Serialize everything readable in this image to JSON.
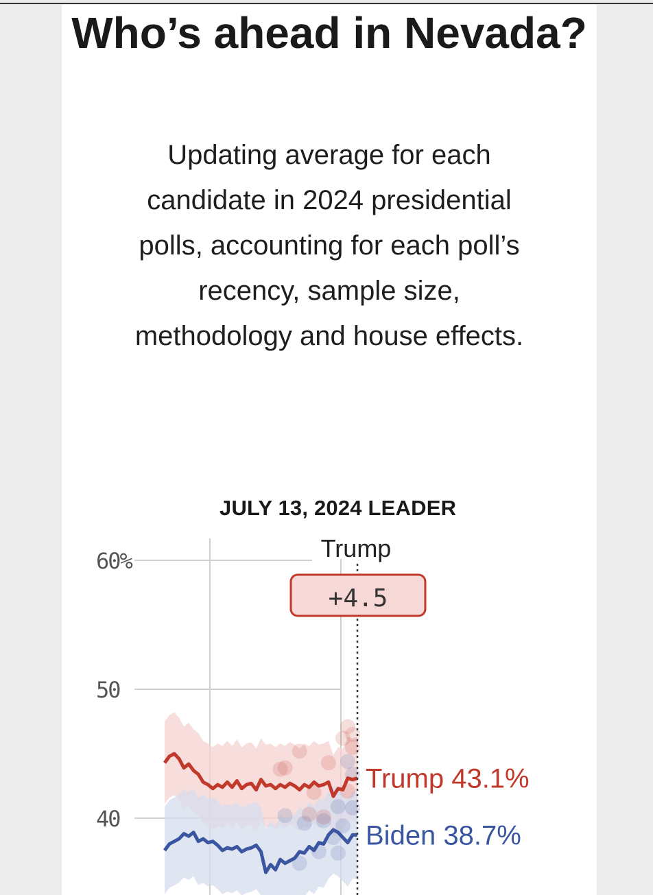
{
  "headline": "Who’s ahead in Nevada?",
  "dek": "Updating average for each candidate in 2024 presidential polls, accounting for each poll’s recency, sample size, methodology and house effects.",
  "leader_label": "JULY 13, 2024 LEADER",
  "leader_name": "Trump",
  "leader_margin": "+4.5",
  "colors": {
    "trump": "#c0392b",
    "biden": "#3b56a0",
    "trump_light": "#f4d3d0",
    "biden_light": "#d6dcee",
    "badge_fill": "#f6d8d6",
    "axis_text": "#555555",
    "grid": "#cfcfcf"
  },
  "chart_data": {
    "type": "line",
    "y_ticks": [
      "60%",
      "50",
      "40"
    ],
    "y_tick_values": [
      60,
      50,
      40
    ],
    "ylim": [
      34,
      62
    ],
    "x_range_weeks": [
      0,
      40
    ],
    "grid": true,
    "series": [
      {
        "name": "Trump",
        "final_label": "Trump 43.1%",
        "final_value": 43.1,
        "values": [
          44.3,
          44.8,
          45.0,
          44.6,
          43.9,
          44.2,
          43.7,
          43.4,
          42.8,
          42.6,
          42.3,
          42.6,
          42.4,
          42.8,
          42.4,
          42.9,
          42.3,
          42.6,
          42.7,
          42.2,
          43.0,
          42.5,
          42.6,
          42.3,
          42.6,
          42.4,
          42.7,
          42.5,
          42.2,
          42.6,
          42.4,
          42.8,
          42.5,
          42.6,
          42.8,
          41.7,
          42.3,
          42.2,
          43.1,
          43.0,
          43.1
        ]
      },
      {
        "name": "Biden",
        "final_label": "Biden 38.7%",
        "final_value": 38.7,
        "values": [
          37.5,
          38.0,
          38.2,
          38.4,
          38.8,
          38.6,
          38.9,
          38.2,
          38.4,
          38.1,
          38.2,
          37.9,
          37.5,
          37.7,
          37.6,
          37.8,
          37.4,
          37.6,
          37.7,
          37.9,
          37.4,
          35.8,
          36.4,
          36.0,
          36.8,
          36.5,
          36.7,
          36.9,
          37.4,
          37.3,
          37.8,
          37.5,
          38.1,
          38.0,
          38.7,
          39.1,
          38.9,
          38.5,
          38.1,
          38.7,
          38.7
        ]
      }
    ],
    "polls": {
      "trump": [
        [
          24,
          43.8
        ],
        [
          25,
          43.9
        ],
        [
          28,
          45.2
        ],
        [
          31,
          42.0
        ],
        [
          34,
          44.3
        ],
        [
          37,
          46.2
        ],
        [
          38,
          47.1
        ],
        [
          39,
          46.5
        ],
        [
          39,
          45.5
        ],
        [
          38,
          42.1
        ],
        [
          30,
          40.3
        ],
        [
          33,
          40.1
        ]
      ],
      "biden": [
        [
          25,
          40.2
        ],
        [
          29,
          39.6
        ],
        [
          33,
          39.8
        ],
        [
          35,
          38.5
        ],
        [
          36,
          40.9
        ],
        [
          37,
          39.4
        ],
        [
          38,
          44.4
        ],
        [
          39,
          43.4
        ],
        [
          28,
          36.5
        ],
        [
          32,
          37.4
        ],
        [
          36,
          37.3
        ],
        [
          39,
          40.8
        ]
      ]
    }
  }
}
